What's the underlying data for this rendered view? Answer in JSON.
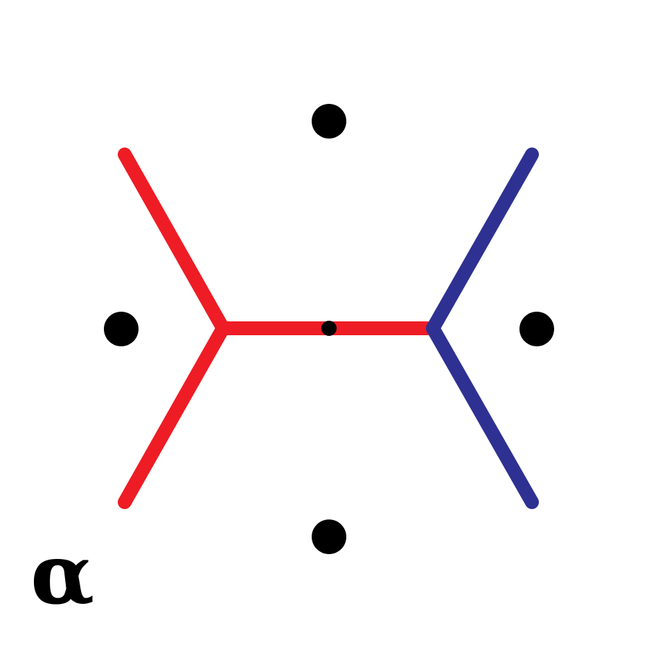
{
  "diagram": {
    "label": "α",
    "colors": {
      "red": "#ee1c25",
      "blue": "#2e3192",
      "dot": "#000000"
    },
    "legs": {
      "upper_left": "red",
      "lower_left": "red",
      "internal": "red",
      "upper_right": "blue",
      "lower_right": "blue"
    },
    "external_points": [
      "top",
      "left",
      "right",
      "bottom"
    ],
    "center_point": "on-internal-line"
  }
}
